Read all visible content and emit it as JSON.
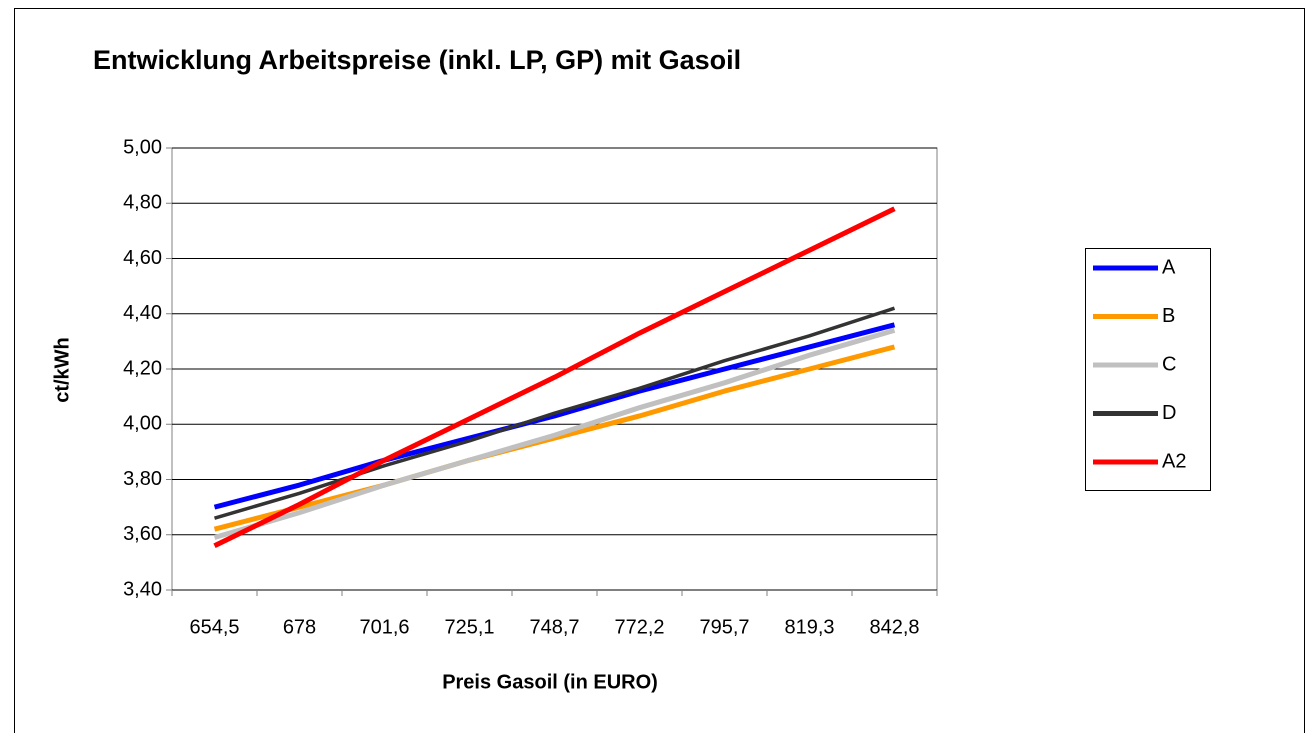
{
  "chart_data": {
    "type": "line",
    "title": "Entwicklung Arbeitspreise (inkl. LP, GP) mit Gasoil",
    "x_label": "Preis Gasoil (in EURO)",
    "y_label": "ct/kWh",
    "categories": [
      "654,5",
      "678",
      "701,6",
      "725,1",
      "748,7",
      "772,2",
      "795,7",
      "819,3",
      "842,8"
    ],
    "series": [
      {
        "name": "A",
        "color": "#0000ff",
        "values": [
          3.7,
          3.78,
          3.87,
          3.95,
          4.03,
          4.12,
          4.2,
          4.28,
          4.36
        ]
      },
      {
        "name": "B",
        "color": "#ff9900",
        "values": [
          3.62,
          3.7,
          3.78,
          3.87,
          3.95,
          4.03,
          4.12,
          4.2,
          4.28
        ]
      },
      {
        "name": "C",
        "color": "#c0c0c0",
        "values": [
          3.59,
          3.68,
          3.78,
          3.87,
          3.96,
          4.06,
          4.15,
          4.25,
          4.34
        ]
      },
      {
        "name": "D",
        "color": "#333333",
        "values": [
          3.66,
          3.75,
          3.85,
          3.94,
          4.04,
          4.13,
          4.23,
          4.32,
          4.42
        ]
      },
      {
        "name": "A2",
        "color": "#ff0000",
        "values": [
          3.56,
          3.71,
          3.87,
          4.02,
          4.17,
          4.33,
          4.48,
          4.63,
          4.78
        ]
      }
    ],
    "ylim": [
      3.4,
      5.0
    ],
    "yticks": [
      {
        "value": 3.4,
        "label": "3,40"
      },
      {
        "value": 3.6,
        "label": "3,60"
      },
      {
        "value": 3.8,
        "label": "3,80"
      },
      {
        "value": 4.0,
        "label": "4,00"
      },
      {
        "value": 4.2,
        "label": "4,20"
      },
      {
        "value": 4.4,
        "label": "4,40"
      },
      {
        "value": 4.6,
        "label": "4,60"
      },
      {
        "value": 4.8,
        "label": "4,80"
      },
      {
        "value": 5.0,
        "label": "5,00"
      }
    ],
    "grid": true,
    "legend": "right"
  }
}
